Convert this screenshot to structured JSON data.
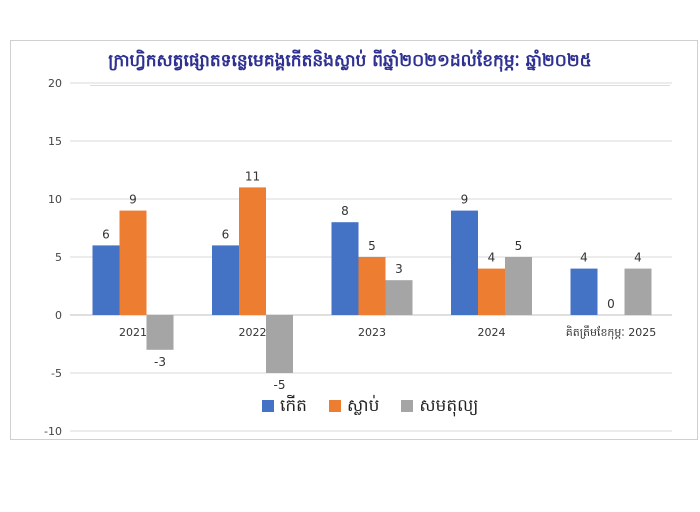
{
  "chart_data": {
    "type": "bar",
    "title": "ក្រាហ្វិកសត្វផ្សោតទន្លេមេគង្គកើតនិងស្លាប់ ពីឆ្នាំ២០២១ដល់ខែកុម្ភៈ ឆ្នាំ២០២៥",
    "categories": [
      "2021",
      "2022",
      "2023",
      "2024",
      "គិតត្រឹមខែកុម្ភៈ 2025"
    ],
    "series": [
      {
        "name": "កើត",
        "color": "#4472c4",
        "values": [
          6,
          6,
          8,
          9,
          4
        ]
      },
      {
        "name": "ស្លាប់",
        "color": "#ed7d31",
        "values": [
          9,
          11,
          5,
          4,
          0
        ]
      },
      {
        "name": "សមតុល្យ",
        "color": "#a5a5a5",
        "values": [
          -3,
          -5,
          3,
          5,
          4
        ]
      }
    ],
    "ylim": [
      -10,
      20
    ],
    "yticks": [
      -10,
      -5,
      0,
      5,
      10,
      15,
      20
    ],
    "grid": true,
    "legend": "bottom-center",
    "xlabel": "",
    "ylabel": ""
  }
}
